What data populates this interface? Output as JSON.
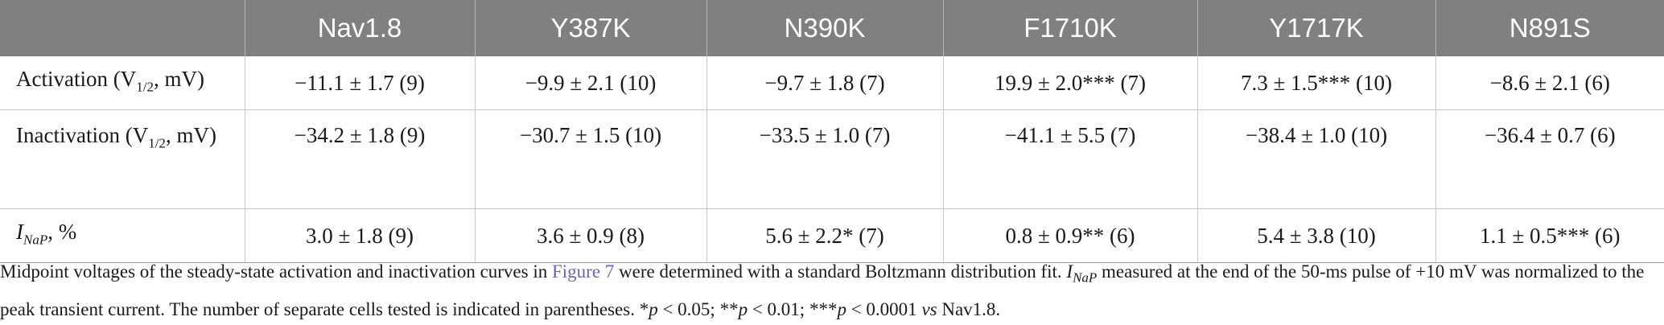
{
  "table": {
    "header": {
      "corner": "",
      "columns": [
        "Nav1.8",
        "Y387K",
        "N390K",
        "F1710K",
        "Y1717K",
        "N891S"
      ]
    },
    "rows": [
      {
        "label_main": "Activation (V",
        "label_sub": "1/2",
        "label_tail": ", mV)",
        "cells": [
          "−11.1 ± 1.7 (9)",
          "−9.9 ± 2.1 (10)",
          "−9.7 ± 1.8 (7)",
          "19.9 ± 2.0*** (7)",
          "7.3 ± 1.5*** (10)",
          "−8.6 ± 2.1 (6)"
        ]
      },
      {
        "label_main": "Inactivation (V",
        "label_sub": "1/2",
        "label_tail": ", mV)",
        "cells": [
          "−34.2 ± 1.8 (9)",
          "−30.7 ± 1.5 (10)",
          "−33.5 ± 1.0 (7)",
          "−41.1 ± 5.5 (7)",
          "−38.4 ± 1.0 (10)",
          "−36.4 ± 0.7 (6)"
        ]
      },
      {
        "label_main": "I",
        "label_sub": "NaP",
        "label_tail": ", %",
        "cells": [
          "3.0 ± 1.8 (9)",
          "3.6 ± 0.9 (8)",
          "5.6 ± 2.2* (7)",
          "0.8 ± 0.9** (6)",
          "5.4 ± 3.8 (10)",
          "1.1 ± 0.5*** (6)"
        ]
      }
    ]
  },
  "footnote": {
    "part1": "Midpoint voltages of the steady-state activation and inactivation curves in ",
    "figure_link": "Figure 7",
    "part2": " were determined with a standard Boltzmann distribution fit. ",
    "inap_main": "I",
    "inap_sub": "NaP",
    "part3": " measured at the end of the 50-ms pulse of +10 mV was normalized to the peak transient current. The number of separate cells tested is indicated in parentheses. *",
    "p1": "p",
    "part4": " < 0.05; **",
    "p2": "p",
    "part5": " < 0.01; ***",
    "p3": "p",
    "part6": " < 0.0001 ",
    "vs": "vs",
    "part7": " Nav1.8."
  }
}
